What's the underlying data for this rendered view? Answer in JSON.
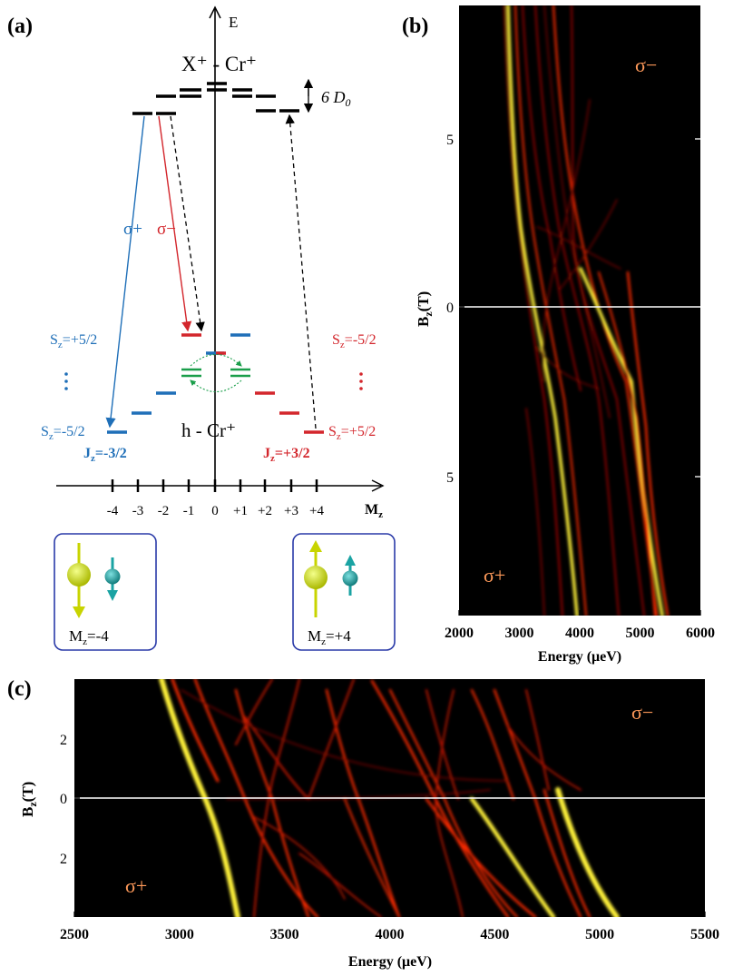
{
  "panel_a": {
    "label": "(a)",
    "energy_axis": "E",
    "top_state": "X⁺ - Cr⁺",
    "splitting": "6 D",
    "splitting_sub": "0",
    "sigma_plus": "σ+",
    "sigma_minus": "σ−",
    "sz_left_top": "S",
    "sz_left_top_val": "=+5/2",
    "sz_right_top": "S",
    "sz_right_top_val": "=-5/2",
    "sz_left_bottom": "S",
    "sz_left_bottom_val": "=-5/2",
    "sz_right_bottom": "S",
    "sz_right_bottom_val": "=+5/2",
    "z": "z",
    "bottom_state": "h - Cr⁺",
    "jz_left": "J",
    "jz_left_val": "=-3/2",
    "jz_right": "J",
    "jz_right_val": "=+3/2",
    "mz_axis": "M",
    "mz_ticks": [
      "-4",
      "-3",
      "-2",
      "-1",
      "0",
      "+1",
      "+2",
      "+3",
      "+4"
    ],
    "box_left": "M",
    "box_left_val": "=-4",
    "box_right": "M",
    "box_right_val": "=+4",
    "colors": {
      "blue": "#1f6fb8",
      "red": "#d3262c",
      "green": "#1a9e4a",
      "yellow": "#c8d400",
      "teal": "#1aa3a3"
    }
  },
  "panel_b": {
    "label": "(b)",
    "sigma_minus": "σ−",
    "sigma_plus": "σ+",
    "ylabel": "B",
    "ylabel_sub": "z",
    "ylabel_unit": "(T)",
    "yticks": [
      "5",
      "0",
      "5"
    ],
    "xlabel": "Energy (μeV)",
    "xticks": [
      "2000",
      "3000",
      "4000",
      "5000",
      "6000"
    ]
  },
  "panel_c": {
    "label": "(c)",
    "sigma_minus": "σ−",
    "sigma_plus": "σ+",
    "ylabel": "B",
    "ylabel_sub": "z",
    "ylabel_unit": "(T)",
    "yticks": [
      "2",
      "0",
      "2"
    ],
    "xlabel": "Energy (μeV)",
    "xticks": [
      "2500",
      "3000",
      "3500",
      "4000",
      "4500",
      "5000",
      "5500"
    ]
  }
}
